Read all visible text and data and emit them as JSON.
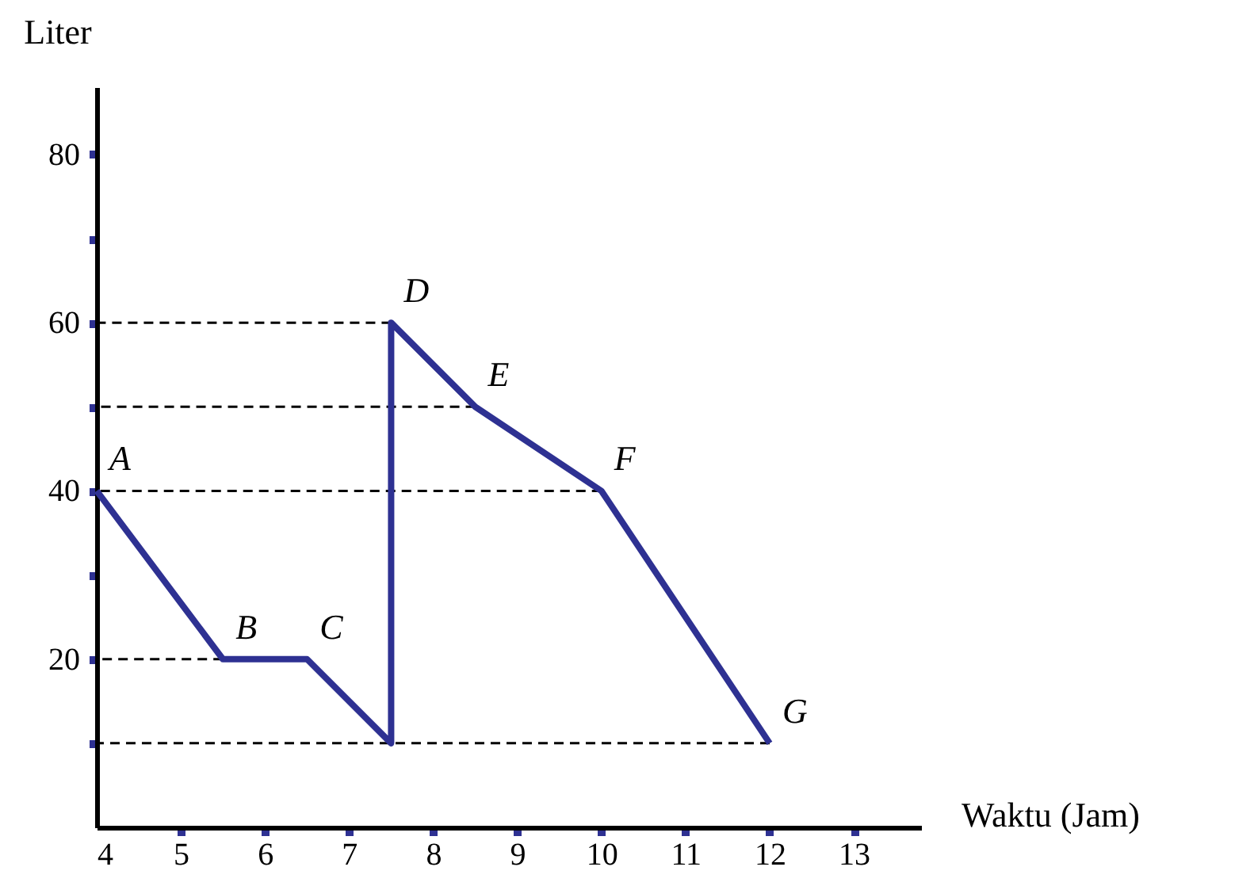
{
  "chart_data": {
    "type": "line",
    "xlabel": "Waktu (Jam)",
    "ylabel": "Liter",
    "xlim": [
      4,
      13.8
    ],
    "ylim": [
      0,
      88
    ],
    "xticks": [
      4,
      5,
      6,
      7,
      8,
      9,
      10,
      11,
      12,
      13
    ],
    "yticks": [
      {
        "value": 10,
        "label": null
      },
      20,
      {
        "value": 30,
        "label": null
      },
      40,
      {
        "value": 50,
        "label": null
      },
      60,
      {
        "value": 70,
        "label": null
      },
      80
    ],
    "grid": false,
    "marker": "none",
    "series": [
      {
        "color": "#000000",
        "line_style": "dashed",
        "x": [
          7.5,
          4
        ],
        "values": [
          60,
          60
        ]
      },
      {
        "color": "#000000",
        "line_style": "dashed",
        "x": [
          8.5,
          4
        ],
        "values": [
          50,
          50
        ]
      },
      {
        "color": "#000000",
        "line_style": "dashed",
        "x": [
          10,
          4
        ],
        "values": [
          40,
          40
        ]
      },
      {
        "color": "#000000",
        "line_style": "dashed",
        "x": [
          5.5,
          4
        ],
        "values": [
          20,
          20
        ]
      },
      {
        "color": "#000000",
        "line_style": "dashed",
        "x": [
          12,
          4
        ],
        "values": [
          10,
          10
        ]
      },
      {
        "color": "#2e3192",
        "line_style": "solid",
        "x": [
          4,
          5.5,
          6.5,
          7.5,
          7.5,
          8.5,
          10,
          12
        ],
        "values": [
          40,
          20,
          20,
          10,
          60,
          50,
          40,
          10
        ]
      }
    ],
    "annotations": [
      {
        "text": "A",
        "x": 4,
        "y": 40
      },
      {
        "text": "B",
        "x": 5.5,
        "y": 20
      },
      {
        "text": "C",
        "x": 6.5,
        "y": 20
      },
      {
        "text": "D",
        "x": 7.5,
        "y": 60
      },
      {
        "text": "E",
        "x": 8.5,
        "y": 50
      },
      {
        "text": "F",
        "x": 10,
        "y": 40
      },
      {
        "text": "G",
        "x": 12,
        "y": 10
      }
    ]
  }
}
